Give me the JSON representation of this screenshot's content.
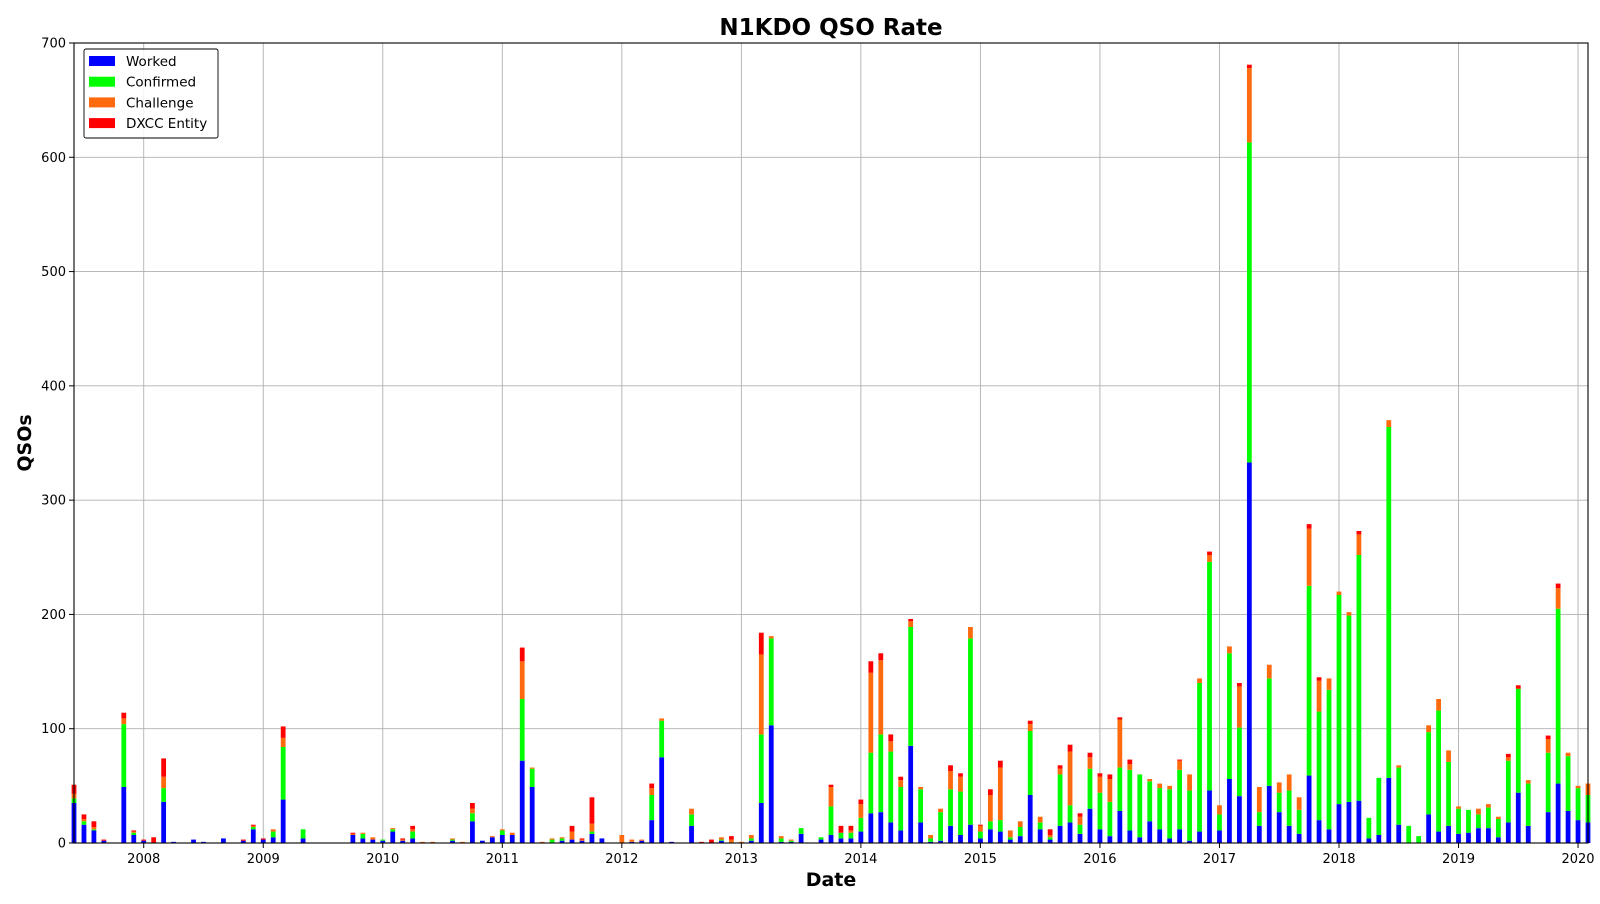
{
  "chart_data": {
    "type": "bar",
    "stacked": true,
    "title": "N1KDO QSO Rate",
    "xlabel": "Date",
    "ylabel": "QSOs",
    "ylim": [
      0,
      700
    ],
    "yticks": [
      0,
      100,
      200,
      300,
      400,
      500,
      600,
      700
    ],
    "xlim": [
      "2007-06",
      "2020-02"
    ],
    "xticks": [
      "2008",
      "2009",
      "2010",
      "2011",
      "2012",
      "2013",
      "2014",
      "2015",
      "2016",
      "2017",
      "2018",
      "2019",
      "2020"
    ],
    "grid": true,
    "legend_position": "top-left",
    "colors": {
      "Worked": "#0000ff",
      "Confirmed": "#00ff00",
      "Challenge": "#ff6a0f",
      "DXCC Entity": "#ff0000"
    },
    "series_names": [
      "Worked",
      "Confirmed",
      "Challenge",
      "DXCC Entity"
    ],
    "x": [
      "2007-06",
      "2007-07",
      "2007-08",
      "2007-09",
      "2007-10",
      "2007-11",
      "2007-12",
      "2008-01",
      "2008-02",
      "2008-03",
      "2008-04",
      "2008-05",
      "2008-06",
      "2008-07",
      "2008-08",
      "2008-09",
      "2008-10",
      "2008-11",
      "2008-12",
      "2009-01",
      "2009-02",
      "2009-03",
      "2009-04",
      "2009-05",
      "2009-06",
      "2009-07",
      "2009-08",
      "2009-09",
      "2009-10",
      "2009-11",
      "2009-12",
      "2010-01",
      "2010-02",
      "2010-03",
      "2010-04",
      "2010-05",
      "2010-06",
      "2010-07",
      "2010-08",
      "2010-09",
      "2010-10",
      "2010-11",
      "2010-12",
      "2011-01",
      "2011-02",
      "2011-03",
      "2011-04",
      "2011-05",
      "2011-06",
      "2011-07",
      "2011-08",
      "2011-09",
      "2011-10",
      "2011-11",
      "2011-12",
      "2012-01",
      "2012-02",
      "2012-03",
      "2012-04",
      "2012-05",
      "2012-06",
      "2012-07",
      "2012-08",
      "2012-09",
      "2012-10",
      "2012-11",
      "2012-12",
      "2013-01",
      "2013-02",
      "2013-03",
      "2013-04",
      "2013-05",
      "2013-06",
      "2013-07",
      "2013-08",
      "2013-09",
      "2013-10",
      "2013-11",
      "2013-12",
      "2014-01",
      "2014-02",
      "2014-03",
      "2014-04",
      "2014-05",
      "2014-06",
      "2014-07",
      "2014-08",
      "2014-09",
      "2014-10",
      "2014-11",
      "2014-12",
      "2015-01",
      "2015-02",
      "2015-03",
      "2015-04",
      "2015-05",
      "2015-06",
      "2015-07",
      "2015-08",
      "2015-09",
      "2015-10",
      "2015-11",
      "2015-12",
      "2016-01",
      "2016-02",
      "2016-03",
      "2016-04",
      "2016-05",
      "2016-06",
      "2016-07",
      "2016-08",
      "2016-09",
      "2016-10",
      "2016-11",
      "2016-12",
      "2017-01",
      "2017-02",
      "2017-03",
      "2017-04",
      "2017-05",
      "2017-06",
      "2017-07",
      "2017-08",
      "2017-09",
      "2017-10",
      "2017-11",
      "2017-12",
      "2018-01",
      "2018-02",
      "2018-03",
      "2018-04",
      "2018-05",
      "2018-06",
      "2018-07",
      "2018-08",
      "2018-09",
      "2018-10",
      "2018-11",
      "2018-12",
      "2019-01",
      "2019-02",
      "2019-03",
      "2019-04",
      "2019-05",
      "2019-06",
      "2019-07",
      "2019-08",
      "2019-09",
      "2019-10",
      "2019-11",
      "2019-12",
      "2020-01",
      "2020-02"
    ],
    "series": [
      {
        "name": "Worked",
        "values": [
          35,
          16,
          11,
          2,
          0,
          49,
          7,
          2,
          0,
          36,
          1,
          0,
          3,
          1,
          0,
          4,
          0,
          2,
          12,
          3,
          5,
          38,
          0,
          4,
          0,
          0,
          0,
          0,
          7,
          4,
          3,
          2,
          10,
          2,
          4,
          0,
          0,
          0,
          2,
          0,
          19,
          2,
          5,
          7,
          7,
          72,
          49,
          0,
          0,
          2,
          3,
          2,
          8,
          4,
          0,
          0,
          1,
          2,
          20,
          75,
          1,
          0,
          15,
          0,
          0,
          2,
          0,
          0,
          2,
          35,
          103,
          1,
          1,
          8,
          0,
          3,
          7,
          4,
          4,
          10,
          26,
          27,
          18,
          11,
          85,
          18,
          1,
          2,
          15,
          7,
          16,
          4,
          12,
          10,
          3,
          6,
          42,
          12,
          3,
          15,
          18,
          8,
          30,
          12,
          6,
          28,
          11,
          5,
          19,
          12,
          4,
          12,
          2,
          10,
          46,
          11,
          56,
          41,
          333,
          15,
          50,
          27,
          15,
          8,
          59,
          20,
          12,
          34,
          36,
          37,
          4,
          7,
          57,
          16,
          0,
          0,
          25,
          10,
          15,
          8,
          9,
          13,
          13,
          5,
          18,
          44,
          15,
          0,
          27,
          52,
          28,
          20,
          18
        ]
      },
      {
        "name": "Confirmed",
        "values": [
          4,
          3,
          1,
          0,
          0,
          55,
          2,
          0,
          0,
          12,
          0,
          0,
          0,
          0,
          0,
          0,
          0,
          0,
          2,
          0,
          5,
          46,
          0,
          8,
          0,
          0,
          0,
          0,
          0,
          4,
          0,
          1,
          2,
          0,
          6,
          0,
          0,
          0,
          1,
          0,
          7,
          0,
          0,
          4,
          0,
          54,
          16,
          0,
          3,
          2,
          0,
          0,
          2,
          0,
          0,
          0,
          0,
          0,
          22,
          32,
          0,
          0,
          10,
          0,
          0,
          1,
          0,
          0,
          2,
          60,
          76,
          3,
          1,
          5,
          0,
          2,
          25,
          5,
          5,
          12,
          53,
          68,
          62,
          38,
          104,
          29,
          3,
          25,
          32,
          38,
          163,
          6,
          7,
          10,
          2,
          8,
          56,
          6,
          2,
          45,
          15,
          8,
          35,
          32,
          30,
          38,
          53,
          55,
          35,
          36,
          43,
          52,
          44,
          130,
          200,
          14,
          110,
          60,
          280,
          12,
          94,
          17,
          31,
          21,
          166,
          95,
          122,
          183,
          163,
          215,
          18,
          50,
          307,
          50,
          15,
          6,
          72,
          106,
          56,
          22,
          20,
          12,
          18,
          16,
          54,
          91,
          37,
          0,
          52,
          153,
          48,
          28,
          24
        ]
      },
      {
        "name": "Challenge",
        "values": [
          4,
          2,
          2,
          0,
          0,
          5,
          1,
          0,
          0,
          10,
          0,
          0,
          0,
          0,
          0,
          0,
          0,
          0,
          1,
          0,
          2,
          8,
          0,
          0,
          0,
          0,
          0,
          0,
          1,
          1,
          2,
          0,
          1,
          1,
          2,
          1,
          1,
          0,
          1,
          1,
          4,
          0,
          1,
          1,
          2,
          33,
          1,
          1,
          1,
          1,
          7,
          1,
          7,
          0,
          0,
          7,
          2,
          1,
          6,
          2,
          0,
          0,
          5,
          0,
          0,
          2,
          3,
          1,
          3,
          70,
          2,
          2,
          1,
          0,
          0,
          0,
          17,
          0,
          2,
          12,
          70,
          65,
          9,
          6,
          5,
          2,
          3,
          3,
          16,
          13,
          10,
          5,
          23,
          46,
          6,
          5,
          6,
          5,
          2,
          5,
          47,
          7,
          10,
          14,
          20,
          42,
          5,
          0,
          2,
          4,
          3,
          8,
          14,
          4,
          6,
          8,
          6,
          36,
          65,
          22,
          12,
          9,
          14,
          11,
          50,
          27,
          10,
          3,
          3,
          18,
          0,
          0,
          6,
          2,
          0,
          0,
          6,
          10,
          10,
          2,
          0,
          5,
          3,
          2,
          3,
          0,
          3,
          0,
          12,
          18,
          3,
          2,
          10
        ]
      },
      {
        "name": "DXCC Entity",
        "values": [
          8,
          4,
          5,
          1,
          0,
          5,
          1,
          1,
          5,
          16,
          0,
          0,
          0,
          0,
          0,
          0,
          0,
          1,
          1,
          1,
          0,
          10,
          0,
          0,
          0,
          0,
          0,
          0,
          1,
          0,
          0,
          0,
          0,
          1,
          3,
          0,
          0,
          0,
          0,
          0,
          5,
          0,
          0,
          0,
          0,
          12,
          0,
          0,
          0,
          0,
          5,
          1,
          23,
          0,
          0,
          0,
          0,
          0,
          4,
          0,
          0,
          0,
          0,
          1,
          3,
          0,
          3,
          0,
          0,
          19,
          0,
          0,
          0,
          0,
          0,
          0,
          2,
          6,
          4,
          4,
          10,
          6,
          6,
          3,
          2,
          0,
          0,
          0,
          5,
          3,
          0,
          1,
          5,
          6,
          0,
          0,
          3,
          0,
          5,
          3,
          6,
          3,
          4,
          3,
          4,
          2,
          4,
          0,
          0,
          0,
          0,
          1,
          0,
          0,
          3,
          0,
          0,
          3,
          3,
          0,
          0,
          0,
          0,
          0,
          4,
          3,
          0,
          0,
          0,
          3,
          0,
          0,
          0,
          0,
          0,
          0,
          0,
          0,
          0,
          0,
          0,
          0,
          0,
          0,
          3,
          3,
          0,
          0,
          3,
          4,
          0,
          0,
          0
        ]
      }
    ]
  }
}
